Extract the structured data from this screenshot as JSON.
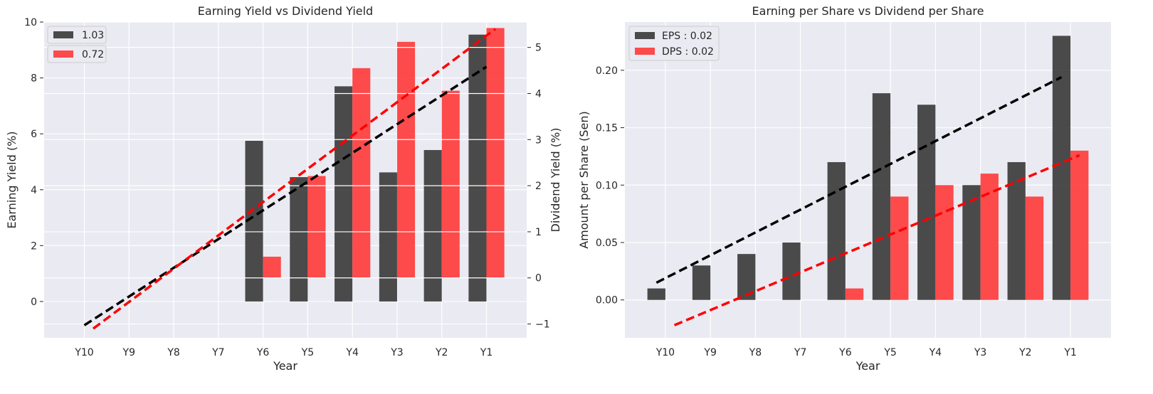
{
  "chart_data": [
    {
      "type": "bar",
      "title": "Earning Yield vs Dividend Yield",
      "xlabel": "Year",
      "ylabel": "Earning Yield (%)",
      "ylabel_right": "Dividend Yield (%)",
      "categories": [
        "Y10",
        "Y9",
        "Y8",
        "Y7",
        "Y6",
        "Y5",
        "Y4",
        "Y3",
        "Y2",
        "Y1"
      ],
      "ylim": [
        -1.3,
        10.0
      ],
      "ylim_right": [
        -1.3,
        5.55
      ],
      "yticks": [
        0,
        2,
        4,
        6,
        8,
        10
      ],
      "yticks_right": [
        -1,
        0,
        1,
        2,
        3,
        4,
        5
      ],
      "grid": true,
      "legend_position": "top-left",
      "series": [
        {
          "name": "1.03",
          "axis": "left",
          "color": "#333333",
          "values": [
            0,
            0,
            0,
            0,
            5.75,
            4.45,
            7.7,
            4.62,
            5.42,
            9.55
          ]
        },
        {
          "name": "0.72",
          "axis": "right",
          "color": "#ff3333",
          "values": [
            0,
            0,
            0,
            0,
            0.46,
            2.21,
            4.55,
            5.12,
            4.06,
            5.42
          ]
        }
      ],
      "trendlines": [
        {
          "series": "1.03",
          "axis": "left",
          "color": "#000000",
          "from": [
            0,
            -0.85
          ],
          "to": [
            9,
            8.4
          ]
        },
        {
          "series": "0.72",
          "axis": "right",
          "color": "#ff0000",
          "from": [
            0.2,
            -1.1
          ],
          "to": [
            9.2,
            5.4
          ]
        }
      ]
    },
    {
      "type": "bar",
      "title": "Earning per Share vs Dividend per Share",
      "xlabel": "Year",
      "ylabel": "Amount per Share (Sen)",
      "categories": [
        "Y10",
        "Y9",
        "Y8",
        "Y7",
        "Y6",
        "Y5",
        "Y4",
        "Y3",
        "Y2",
        "Y1"
      ],
      "ylim": [
        -0.033,
        0.242
      ],
      "yticks": [
        0.0,
        0.05,
        0.1,
        0.15,
        0.2
      ],
      "ytick_labels": [
        "0.00",
        "0.05",
        "0.10",
        "0.15",
        "0.20"
      ],
      "grid": true,
      "legend_position": "top-left",
      "series": [
        {
          "name": "EPS : 0.02",
          "color": "#333333",
          "values": [
            0.01,
            0.03,
            0.04,
            0.05,
            0.12,
            0.18,
            0.17,
            0.1,
            0.12,
            0.23
          ]
        },
        {
          "name": "DPS : 0.02",
          "color": "#ff3333",
          "values": [
            0,
            0,
            0,
            0,
            0.01,
            0.09,
            0.1,
            0.11,
            0.09,
            0.13
          ]
        }
      ],
      "trendlines": [
        {
          "series": "EPS : 0.02",
          "color": "#000000",
          "from": [
            -0.2,
            0.015
          ],
          "to": [
            8.8,
            0.194
          ]
        },
        {
          "series": "DPS : 0.02",
          "color": "#ff0000",
          "from": [
            0.2,
            -0.022
          ],
          "to": [
            9.2,
            0.126
          ]
        }
      ]
    }
  ]
}
